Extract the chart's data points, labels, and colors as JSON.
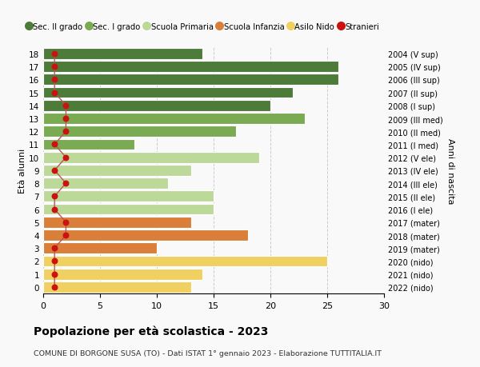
{
  "ages": [
    18,
    17,
    16,
    15,
    14,
    13,
    12,
    11,
    10,
    9,
    8,
    7,
    6,
    5,
    4,
    3,
    2,
    1,
    0
  ],
  "values": [
    14,
    26,
    26,
    22,
    20,
    23,
    17,
    8,
    19,
    13,
    11,
    15,
    15,
    13,
    18,
    10,
    25,
    14,
    13
  ],
  "stranieri": [
    1,
    1,
    1,
    1,
    2,
    2,
    2,
    1,
    2,
    1,
    2,
    1,
    1,
    2,
    2,
    1,
    1,
    1,
    1
  ],
  "right_labels": [
    "2004 (V sup)",
    "2005 (IV sup)",
    "2006 (III sup)",
    "2007 (II sup)",
    "2008 (I sup)",
    "2009 (III med)",
    "2010 (II med)",
    "2011 (I med)",
    "2012 (V ele)",
    "2013 (IV ele)",
    "2014 (III ele)",
    "2015 (II ele)",
    "2016 (I ele)",
    "2017 (mater)",
    "2018 (mater)",
    "2019 (mater)",
    "2020 (nido)",
    "2021 (nido)",
    "2022 (nido)"
  ],
  "bar_colors": [
    "#4d7c3a",
    "#4d7c3a",
    "#4d7c3a",
    "#4d7c3a",
    "#4d7c3a",
    "#7aaa52",
    "#7aaa52",
    "#7aaa52",
    "#bdd99a",
    "#bdd99a",
    "#bdd99a",
    "#bdd99a",
    "#bdd99a",
    "#d97f3a",
    "#d97f3a",
    "#d97f3a",
    "#f0d060",
    "#f0d060",
    "#f0d060"
  ],
  "legend_labels": [
    "Sec. II grado",
    "Sec. I grado",
    "Scuola Primaria",
    "Scuola Infanzia",
    "Asilo Nido",
    "Stranieri"
  ],
  "legend_colors": [
    "#4d7c3a",
    "#7aaa52",
    "#bdd99a",
    "#d97f3a",
    "#f0d060",
    "#cc1111"
  ],
  "stranieri_color": "#cc1111",
  "stranieri_line_color": "#bb5555",
  "ylabel_left": "Età alunni",
  "ylabel_right": "Anni di nascita",
  "title": "Popolazione per età scolastica - 2023",
  "subtitle": "COMUNE DI BORGONE SUSA (TO) - Dati ISTAT 1° gennaio 2023 - Elaborazione TUTTITALIA.IT",
  "xlim": [
    0,
    30
  ],
  "ylim": [
    -0.5,
    18.5
  ],
  "background_color": "#f9f9f9",
  "grid_color": "#cccccc"
}
